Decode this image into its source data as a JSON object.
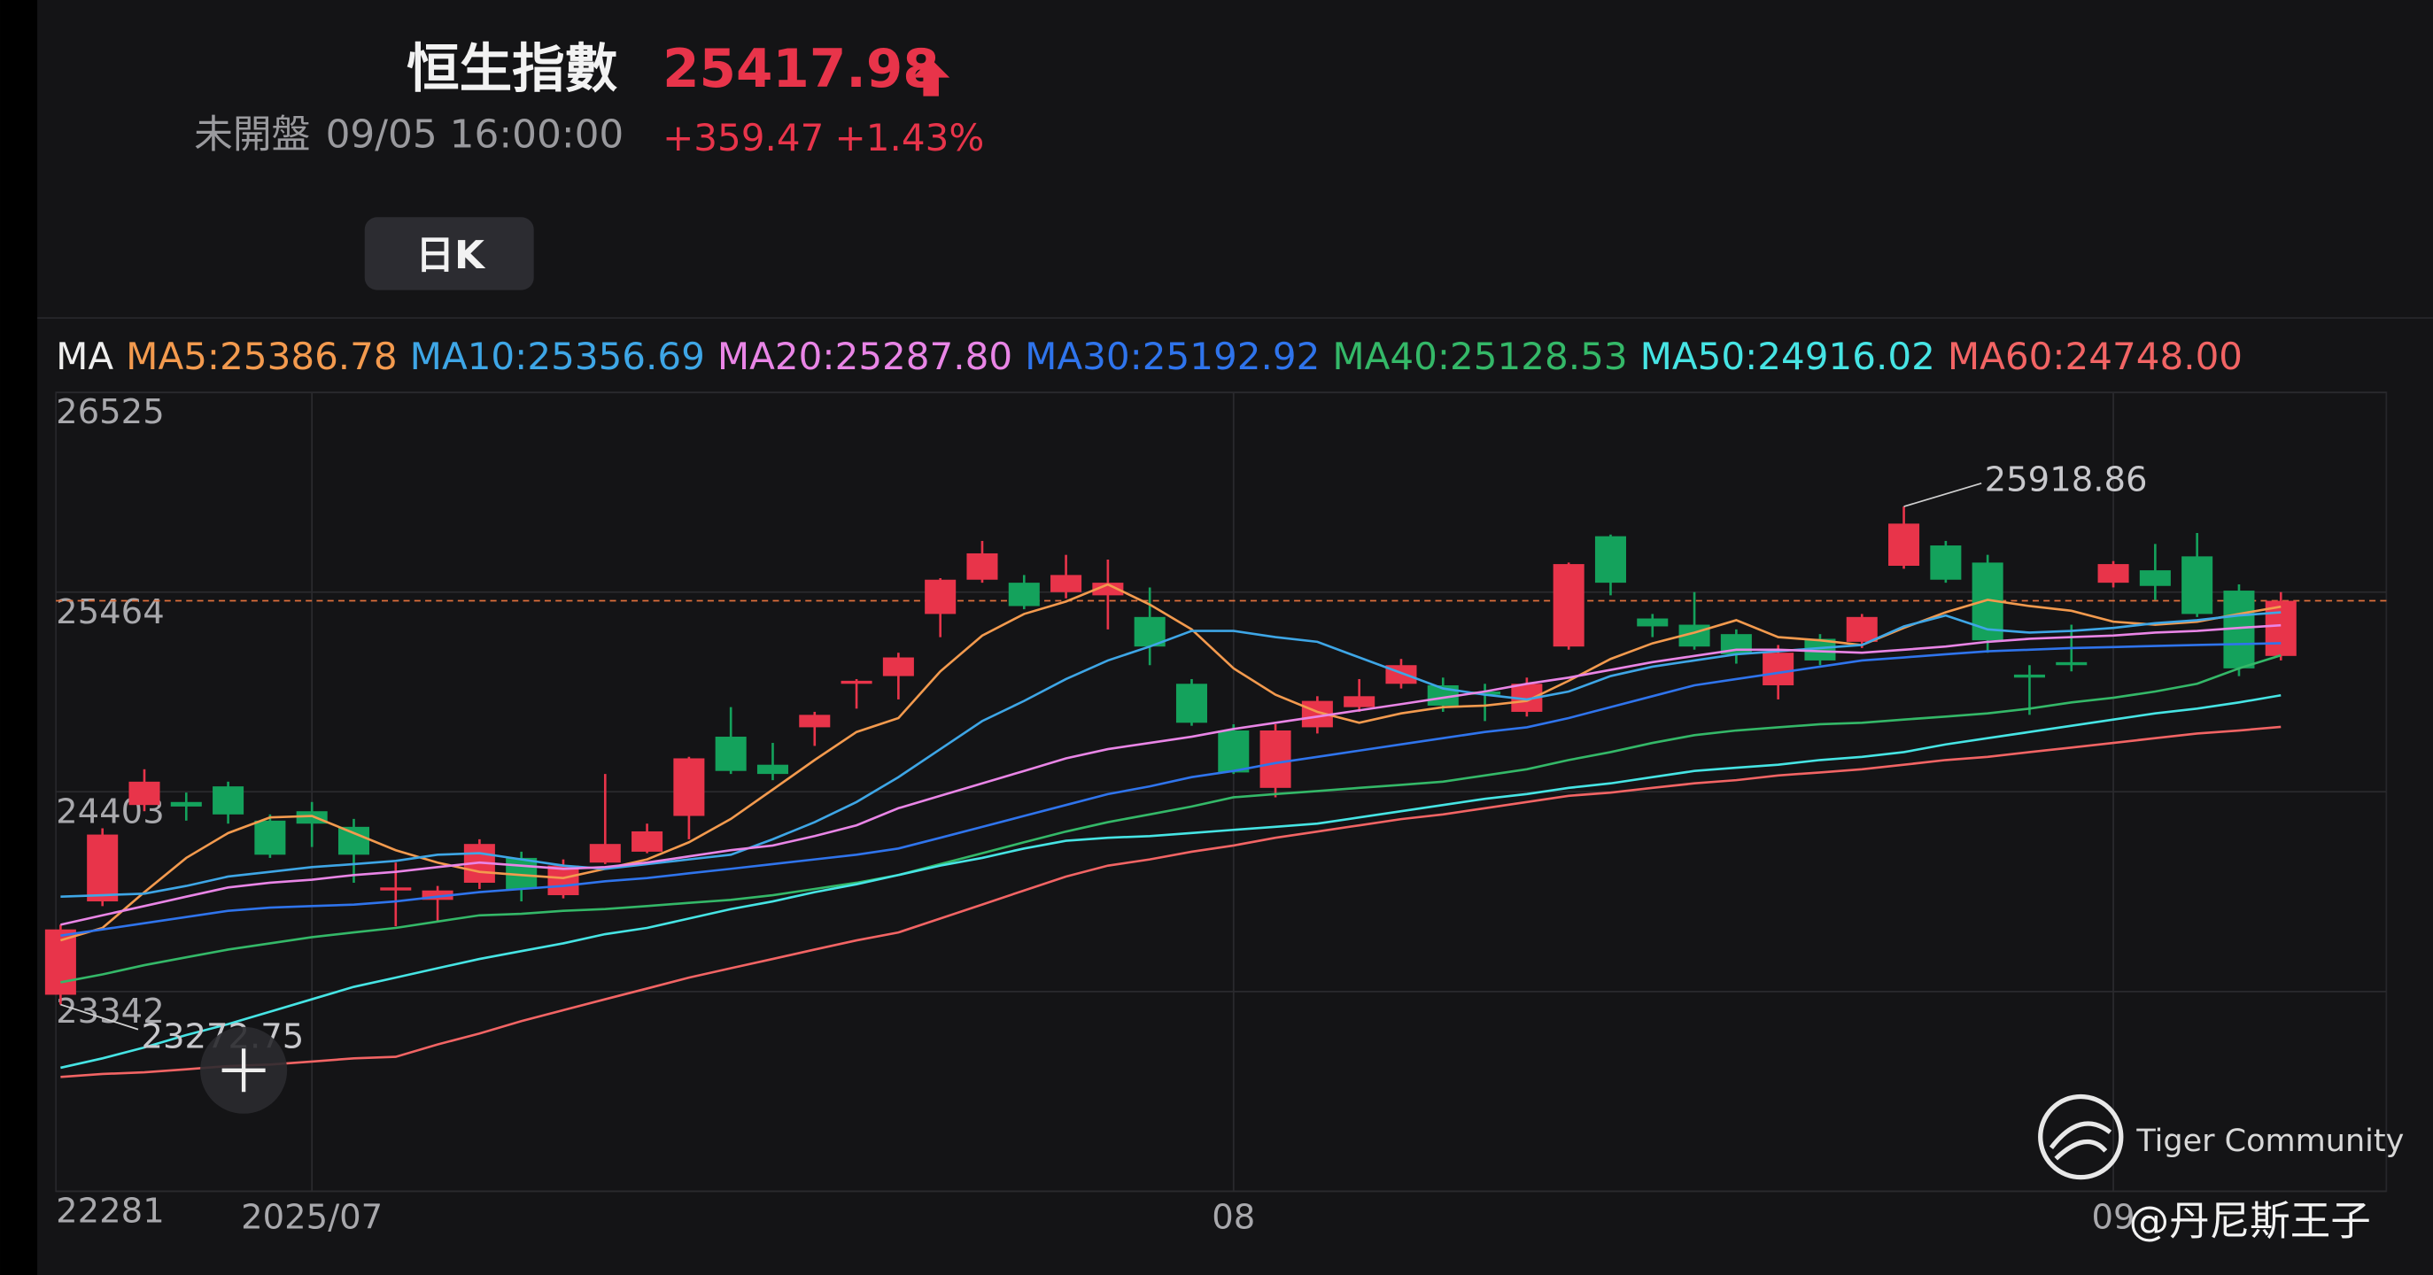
{
  "header": {
    "title": "恒生指數",
    "price": 25417.98,
    "status": "未開盤",
    "datetime": "09/05 16:00:00",
    "change": "+359.47",
    "change_pct": "+1.43%",
    "period_button": "日K"
  },
  "watermark": {
    "brand": "Tiger Community",
    "author": "@丹尼斯王子"
  },
  "chart_data": {
    "type": "candlestick",
    "indicator_label": "MA",
    "up_color": "#e8344a",
    "down_color": "#14a25c",
    "grid": true,
    "categories": [
      null,
      null,
      null,
      null,
      null,
      null,
      "2025/07",
      null,
      null,
      null,
      null,
      null,
      null,
      null,
      null,
      null,
      null,
      null,
      null,
      null,
      null,
      null,
      null,
      null,
      null,
      null,
      null,
      null,
      "08",
      null,
      null,
      null,
      null,
      null,
      null,
      null,
      null,
      null,
      null,
      null,
      null,
      null,
      null,
      null,
      null,
      null,
      null,
      null,
      null,
      "09",
      null,
      null,
      null,
      null
    ],
    "open": [
      23325,
      23821,
      24333,
      24349,
      24432,
      24250,
      24300,
      24217,
      23879,
      23829,
      23920,
      24052,
      23854,
      24027,
      24085,
      24275,
      24696,
      24547,
      24746,
      24977,
      25018,
      25348,
      25530,
      25514,
      25464,
      25447,
      25332,
      24977,
      24729,
      24424,
      24746,
      24853,
      24977,
      24969,
      24936,
      24828,
      25175,
      25761,
      25324,
      25291,
      25241,
      24969,
      25216,
      25200,
      25604,
      25712,
      25621,
      25026,
      25092,
      25514,
      25580,
      25654,
      25472,
      25125
    ],
    "high": [
      23697,
      24209,
      24523,
      24399,
      24457,
      24283,
      24349,
      24259,
      24027,
      23903,
      24151,
      24085,
      24044,
      24498,
      24234,
      24589,
      24853,
      24663,
      24828,
      25002,
      25142,
      25538,
      25736,
      25555,
      25662,
      25637,
      25489,
      25002,
      24762,
      24762,
      24911,
      25002,
      25109,
      25010,
      24977,
      25010,
      25621,
      25770,
      25348,
      25464,
      25266,
      25183,
      25241,
      25348,
      25918.86,
      25736,
      25662,
      25076,
      25291,
      25629,
      25720,
      25778,
      25505,
      25464
    ],
    "low": [
      23272.75,
      23796,
      24300,
      24250,
      24234,
      24052,
      24110,
      23920,
      23689,
      23714,
      23887,
      23821,
      23837,
      24019,
      24077,
      24151,
      24498,
      24465,
      24647,
      24845,
      24894,
      25225,
      25514,
      25373,
      25431,
      25266,
      25076,
      24754,
      24498,
      24374,
      24713,
      24828,
      24952,
      24828,
      24779,
      24803,
      25158,
      25447,
      25225,
      25158,
      25084,
      24894,
      25076,
      25167,
      25588,
      25514,
      25142,
      24812,
      25043,
      25489,
      25423,
      25332,
      25018,
      25101
    ],
    "close": [
      23672,
      24176,
      24457,
      24325,
      24283,
      24069,
      24234,
      24069,
      23895,
      23879,
      24126,
      23887,
      24011,
      24126,
      24193,
      24581,
      24514,
      24498,
      24812,
      24993,
      25117,
      25530,
      25670,
      25390,
      25555,
      25514,
      25175,
      24770,
      24506,
      24729,
      24886,
      24911,
      25076,
      24861,
      24919,
      24977,
      25613,
      25514,
      25282,
      25175,
      25134,
      25142,
      25101,
      25332,
      25828,
      25530,
      25208,
      25010,
      25076,
      25613,
      25497,
      25348,
      25059,
      25417.98
    ],
    "series": [
      {
        "name": "MA5:25386.78",
        "color": "#f39a4e",
        "values": [
          23614,
          23680,
          23870,
          24052,
          24184,
          24267,
          24275,
          24184,
          24093,
          24027,
          23978,
          23961,
          23945,
          23994,
          24044,
          24135,
          24259,
          24415,
          24572,
          24721,
          24795,
          25043,
          25233,
          25348,
          25414,
          25505,
          25398,
          25266,
          25059,
          24919,
          24828,
          24770,
          24820,
          24853,
          24861,
          24886,
          24993,
          25109,
          25192,
          25249,
          25315,
          25225,
          25208,
          25183,
          25274,
          25357,
          25423,
          25390,
          25365,
          25307,
          25291,
          25307,
          25348,
          25386.78
        ]
      },
      {
        "name": "MA10:25356.69",
        "color": "#3ea6e6",
        "values": [
          23846,
          23854,
          23862,
          23903,
          23953,
          23978,
          24003,
          24019,
          24036,
          24069,
          24077,
          24044,
          24011,
          23994,
          24019,
          24044,
          24069,
          24151,
          24242,
          24349,
          24481,
          24630,
          24779,
          24886,
          25002,
          25101,
          25175,
          25258,
          25258,
          25225,
          25200,
          25117,
          25035,
          24952,
          24919,
          24894,
          24936,
          25018,
          25068,
          25101,
          25134,
          25150,
          25167,
          25183,
          25282,
          25340,
          25266,
          25249,
          25258,
          25274,
          25299,
          25315,
          25340,
          25356.69
        ]
      },
      {
        "name": "MA20:25287.80",
        "color": "#e985e6",
        "values": [
          23697,
          23747,
          23796,
          23846,
          23895,
          23920,
          23936,
          23961,
          23978,
          24003,
          24027,
          24011,
          23994,
          24003,
          24027,
          24060,
          24093,
          24118,
          24168,
          24225,
          24316,
          24382,
          24448,
          24514,
          24581,
          24630,
          24663,
          24696,
          24737,
          24770,
          24803,
          24836,
          24869,
          24903,
          24936,
          24977,
          25010,
          25051,
          25092,
          25125,
          25158,
          25158,
          25150,
          25142,
          25158,
          25175,
          25200,
          25216,
          25225,
          25233,
          25249,
          25258,
          25274,
          25287.8
        ]
      },
      {
        "name": "MA30:25192.92",
        "color": "#2f74ec",
        "values": [
          23639,
          23672,
          23705,
          23738,
          23771,
          23788,
          23796,
          23804,
          23821,
          23846,
          23870,
          23887,
          23903,
          23928,
          23945,
          23970,
          23994,
          24019,
          24044,
          24069,
          24102,
          24159,
          24217,
          24275,
          24333,
          24391,
          24432,
          24481,
          24514,
          24556,
          24589,
          24622,
          24655,
          24688,
          24721,
          24746,
          24795,
          24853,
          24911,
          24969,
          25002,
          25035,
          25068,
          25101,
          25117,
          25134,
          25150,
          25158,
          25167,
          25172,
          25178,
          25183,
          25188,
          25192.92
        ]
      },
      {
        "name": "MA40:25128.53",
        "color": "#34b868",
        "values": [
          23391,
          23433,
          23482,
          23524,
          23565,
          23598,
          23631,
          23656,
          23680,
          23714,
          23747,
          23755,
          23771,
          23780,
          23796,
          23813,
          23829,
          23854,
          23887,
          23920,
          23961,
          24019,
          24077,
          24135,
          24192,
          24242,
          24283,
          24325,
          24374,
          24391,
          24407,
          24424,
          24440,
          24457,
          24490,
          24523,
          24572,
          24614,
          24663,
          24704,
          24729,
          24746,
          24762,
          24770,
          24787,
          24803,
          24820,
          24845,
          24878,
          24903,
          24936,
          24977,
          25059,
          25128.53
        ]
      },
      {
        "name": "MA50:24916.02",
        "color": "#46e4e4",
        "values": [
          22937,
          22987,
          23045,
          23111,
          23169,
          23235,
          23301,
          23367,
          23416,
          23466,
          23515,
          23557,
          23598,
          23647,
          23680,
          23730,
          23780,
          23821,
          23870,
          23912,
          23961,
          24011,
          24052,
          24102,
          24143,
          24159,
          24168,
          24184,
          24201,
          24217,
          24234,
          24267,
          24300,
          24333,
          24366,
          24391,
          24424,
          24448,
          24481,
          24514,
          24531,
          24547,
          24572,
          24589,
          24614,
          24655,
          24688,
          24721,
          24754,
          24787,
          24820,
          24845,
          24878,
          24916.02
        ]
      },
      {
        "name": "MA60:24748.00",
        "color": "#f26464",
        "values": [
          22888,
          22904,
          22913,
          22929,
          22946,
          22954,
          22970,
          22987,
          22995,
          23061,
          23119,
          23185,
          23243,
          23301,
          23358,
          23416,
          23466,
          23515,
          23565,
          23614,
          23656,
          23730,
          23804,
          23879,
          23953,
          24011,
          24044,
          24085,
          24118,
          24159,
          24192,
          24225,
          24258,
          24283,
          24316,
          24349,
          24382,
          24399,
          24424,
          24448,
          24465,
          24490,
          24506,
          24523,
          24547,
          24572,
          24589,
          24614,
          24638,
          24663,
          24688,
          24713,
          24729,
          24748
        ]
      }
    ],
    "ylim": [
      22281,
      26525
    ],
    "yticks": [
      22281,
      23342,
      24403,
      25464,
      26525
    ]
  }
}
